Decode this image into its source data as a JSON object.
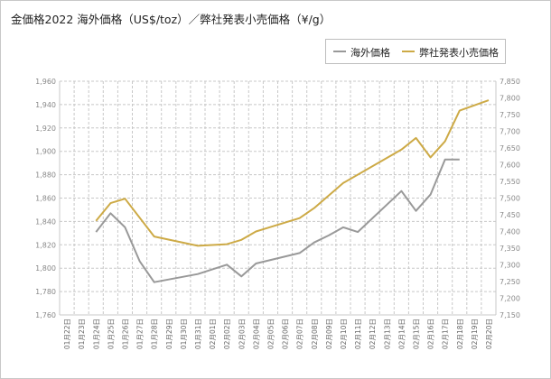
{
  "chart_data": {
    "type": "line",
    "title": "金価格2022 海外価格（US$/toz）／弊社発表小売価格（¥/g）",
    "categories": [
      "01月22日",
      "01月23日",
      "01月24日",
      "01月25日",
      "01月26日",
      "01月27日",
      "01月28日",
      "01月29日",
      "01月30日",
      "01月31日",
      "02月01日",
      "02月02日",
      "02月03日",
      "02月04日",
      "02月05日",
      "02月06日",
      "02月07日",
      "02月08日",
      "02月09日",
      "02月10日",
      "02月11日",
      "02月12日",
      "02月13日",
      "02月14日",
      "02月15日",
      "02月16日",
      "02月17日",
      "02月18日",
      "02月19日",
      "02月20日"
    ],
    "y_left": {
      "min": 1760,
      "max": 1960,
      "step": 20
    },
    "y_right": {
      "min": 7150,
      "max": 7850,
      "step": 50
    },
    "grid": true,
    "legend_position": "top-right",
    "series": [
      {
        "name": "海外価格",
        "axis": "left",
        "color": "#999999",
        "values": [
          null,
          null,
          1831,
          1847,
          1835,
          1806,
          1788,
          null,
          null,
          1795,
          null,
          1803,
          1793,
          1804,
          null,
          null,
          1813,
          1822,
          1828,
          1835,
          1831,
          null,
          null,
          1866,
          1849,
          1863,
          1893,
          1893,
          null,
          null
        ]
      },
      {
        "name": "弊社発表小売価格",
        "axis": "right",
        "color": "#cdaa46",
        "values": [
          null,
          null,
          7432,
          7485,
          7498,
          null,
          7385,
          null,
          null,
          7357,
          null,
          7362,
          7375,
          7400,
          null,
          null,
          7440,
          7470,
          null,
          7545,
          null,
          null,
          null,
          7645,
          7680,
          7622,
          7670,
          7762,
          null,
          7793
        ]
      }
    ]
  }
}
